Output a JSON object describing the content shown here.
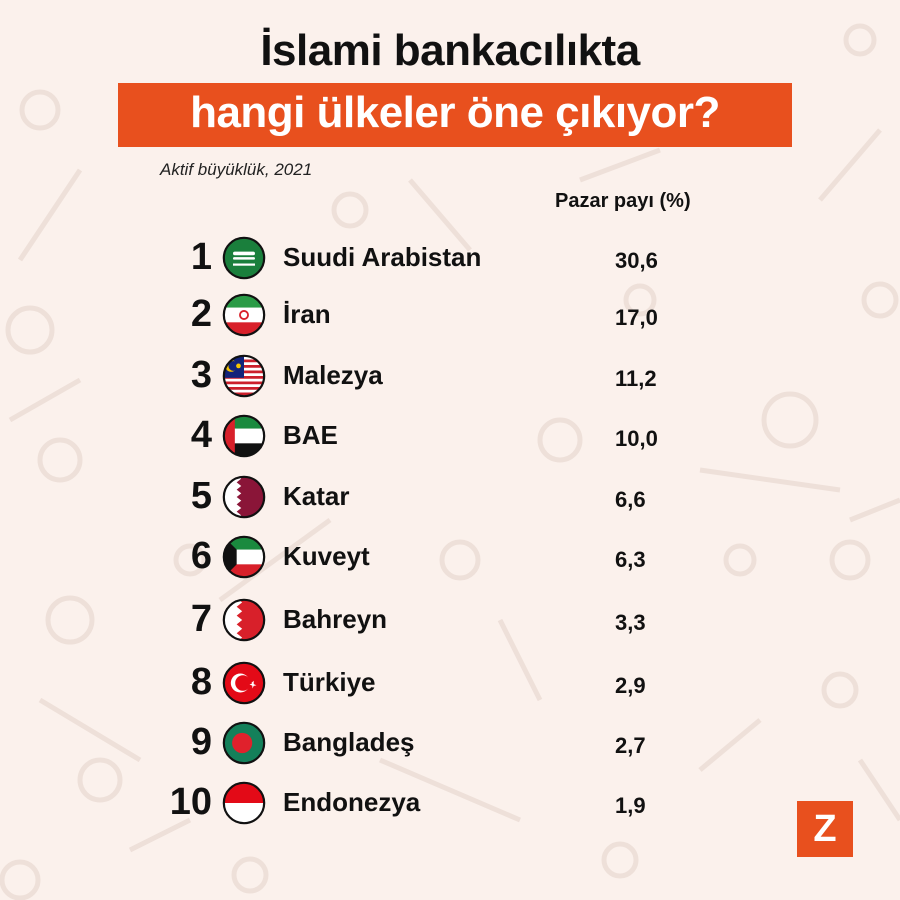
{
  "header": {
    "title_line1": "İslami bankacılıkta",
    "title_line2": "hangi ülkeler öne çıkıyor?",
    "subtitle": "Aktif büyüklük, 2021",
    "column_header": "Pazar payı (%)"
  },
  "logo": {
    "letter": "Z"
  },
  "colors": {
    "accent": "#e8501e",
    "background": "#fbf1ec",
    "text": "#111111"
  },
  "chart_data": {
    "type": "table",
    "title": "İslami bankacılıkta hangi ülkeler öne çıkıyor?",
    "subtitle": "Aktif büyüklük, 2021",
    "columns": [
      "",
      "",
      "",
      "Pazar payı (%)"
    ],
    "rows": [
      {
        "rank": "1",
        "country": "Suudi Arabistan",
        "flag": "saudi-arabia-flag-icon",
        "value": "30,6"
      },
      {
        "rank": "2",
        "country": "İran",
        "flag": "iran-flag-icon",
        "value": "17,0"
      },
      {
        "rank": "3",
        "country": "Malezya",
        "flag": "malaysia-flag-icon",
        "value": "11,2"
      },
      {
        "rank": "4",
        "country": "BAE",
        "flag": "uae-flag-icon",
        "value": "10,0"
      },
      {
        "rank": "5",
        "country": "Katar",
        "flag": "qatar-flag-icon",
        "value": "6,6"
      },
      {
        "rank": "6",
        "country": "Kuveyt",
        "flag": "kuwait-flag-icon",
        "value": "6,3"
      },
      {
        "rank": "7",
        "country": "Bahreyn",
        "flag": "bahrain-flag-icon",
        "value": "3,3"
      },
      {
        "rank": "8",
        "country": "Türkiye",
        "flag": "turkey-flag-icon",
        "value": "2,9"
      },
      {
        "rank": "9",
        "country": "Bangladeş",
        "flag": "bangladesh-flag-icon",
        "value": "2,7"
      },
      {
        "rank": "10",
        "country": "Endonezya",
        "flag": "indonesia-flag-icon",
        "value": "1,9"
      }
    ]
  }
}
